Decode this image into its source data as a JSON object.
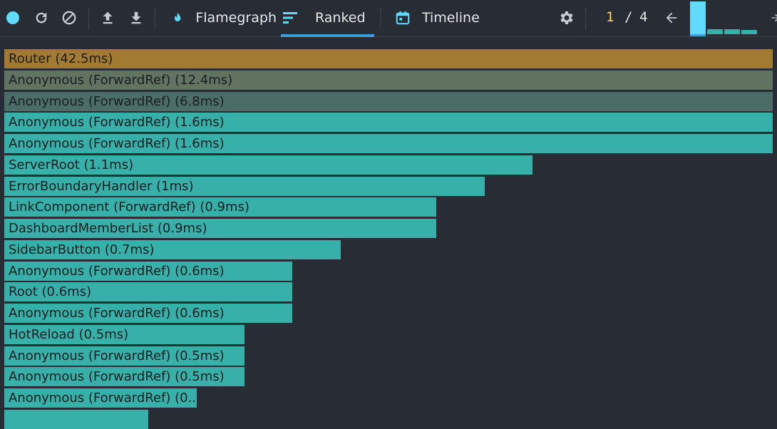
{
  "toolbar": {
    "tabs": [
      {
        "label": "Flamegraph",
        "icon": "flame-icon"
      },
      {
        "label": "Ranked",
        "icon": "ranked-icon",
        "active": true
      },
      {
        "label": "Timeline",
        "icon": "calendar-icon"
      }
    ],
    "commit": {
      "current": "1",
      "separator": "/",
      "total": "4"
    },
    "commit_levels": [
      1.0,
      0.15,
      0.15,
      0.12
    ],
    "colors": {
      "record": "#61dafb",
      "accent": "#61dafb",
      "active_underline": "#3b9ed6",
      "current_commit": "#ffd866"
    }
  },
  "ranked": {
    "items": [
      {
        "label": "Router (42.5ms)",
        "value": 42.5,
        "color": "#a37a32"
      },
      {
        "label": "Anonymous (ForwardRef) (12.4ms)",
        "value": 12.4,
        "color": "#627461"
      },
      {
        "label": "Anonymous (ForwardRef) (6.8ms)",
        "value": 6.8,
        "color": "#4a6d68"
      },
      {
        "label": "Anonymous (ForwardRef) (1.6ms)",
        "value": 1.6,
        "color": "#37b0aa"
      },
      {
        "label": "Anonymous (ForwardRef) (1.6ms)",
        "value": 1.6,
        "color": "#37b0aa"
      },
      {
        "label": "ServerRoot (1.1ms)",
        "value": 1.1,
        "color": "#37b0aa"
      },
      {
        "label": "ErrorBoundaryHandler (1ms)",
        "value": 1.0,
        "color": "#37b0aa"
      },
      {
        "label": "LinkComponent (ForwardRef) (0.9ms)",
        "value": 0.9,
        "color": "#37b0aa"
      },
      {
        "label": "DashboardMemberList (0.9ms)",
        "value": 0.9,
        "color": "#37b0aa"
      },
      {
        "label": "SidebarButton (0.7ms)",
        "value": 0.7,
        "color": "#37b0aa"
      },
      {
        "label": "Anonymous (ForwardRef) (0.6ms)",
        "value": 0.6,
        "color": "#37b0aa"
      },
      {
        "label": "Root (0.6ms)",
        "value": 0.6,
        "color": "#37b0aa"
      },
      {
        "label": "Anonymous (ForwardRef) (0.6ms)",
        "value": 0.6,
        "color": "#37b0aa"
      },
      {
        "label": "HotReload (0.5ms)",
        "value": 0.5,
        "color": "#37b0aa"
      },
      {
        "label": "Anonymous (ForwardRef) (0.5ms)",
        "value": 0.5,
        "color": "#37b0aa"
      },
      {
        "label": "Anonymous (ForwardRef) (0.5ms)",
        "value": 0.5,
        "color": "#37b0aa"
      },
      {
        "label": "Anonymous (ForwardRef) (0....",
        "value": 0.4,
        "color": "#37b0aa"
      },
      {
        "label": "",
        "value": 0.3,
        "color": "#37b0aa"
      }
    ]
  }
}
